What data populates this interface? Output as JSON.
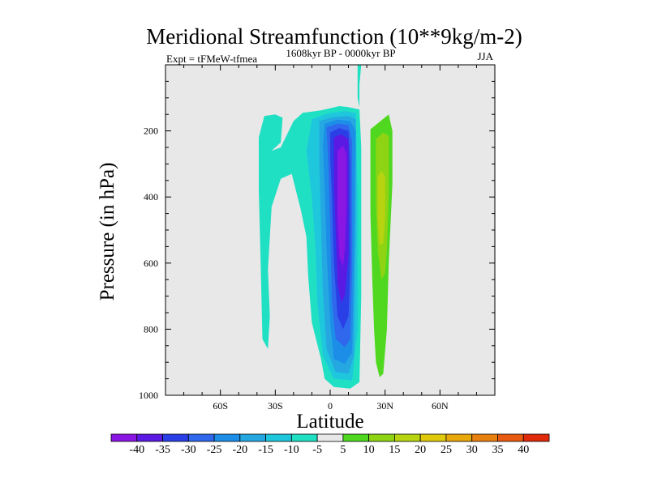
{
  "chart_data": {
    "type": "heatmap",
    "title": "Meridional Streamfunction (10**9kg/m-2)",
    "subtitle_left": "Expt = tFMeW-tfmea",
    "subtitle_center": "1608kyr BP - 0000kyr BP",
    "subtitle_right": "JJA",
    "xlabel": "Latitude",
    "ylabel": "Pressure (in hPa)",
    "xlim": [
      -90,
      90
    ],
    "ylim": [
      0,
      1000
    ],
    "y_inverted": true,
    "x_ticks": [
      {
        "value": -60,
        "label": "60S"
      },
      {
        "value": -30,
        "label": "30S"
      },
      {
        "value": 0,
        "label": "0"
      },
      {
        "value": 30,
        "label": "30N"
      },
      {
        "value": 60,
        "label": "60N"
      }
    ],
    "y_ticks": [
      {
        "value": 200,
        "label": "200"
      },
      {
        "value": 400,
        "label": "400"
      },
      {
        "value": 600,
        "label": "600"
      },
      {
        "value": 800,
        "label": "800"
      },
      {
        "value": 1000,
        "label": "1000"
      }
    ],
    "background_color": "#e8e8e8",
    "contour_levels": [
      -40,
      -35,
      -30,
      -25,
      -20,
      -15,
      -10,
      -5,
      5,
      10,
      15,
      20,
      25,
      30,
      35,
      40
    ],
    "colorbar_labels": [
      "-40",
      "-35",
      "-30",
      "-25",
      "-20",
      "-15",
      "-10",
      "-5",
      "5",
      "10",
      "15",
      "20",
      "25",
      "30",
      "35",
      "40"
    ],
    "colorbar_colors": [
      "#8a16e4",
      "#5a1ae4",
      "#2a3fe6",
      "#2f68ec",
      "#1c8ee8",
      "#25a8e2",
      "#1ec7dc",
      "#20e0c4",
      "#e8e8e8",
      "#50d820",
      "#8ed414",
      "#b8d410",
      "#e0c80c",
      "#e8a80c",
      "#e88010",
      "#e85a10",
      "#e02a0a"
    ],
    "regions": [
      {
        "name": "southern-cell-outer",
        "level": -5,
        "color": "#20e0c4",
        "points": [
          [
            -36,
            155
          ],
          [
            -30,
            150
          ],
          [
            -26,
            160
          ],
          [
            -27,
            235
          ],
          [
            -32,
            260
          ],
          [
            -27,
            250
          ],
          [
            -20,
            170
          ],
          [
            -15,
            145
          ],
          [
            -5,
            138
          ],
          [
            5,
            125
          ],
          [
            10,
            128
          ],
          [
            16,
            135
          ],
          [
            17,
            250
          ],
          [
            17,
            700
          ],
          [
            16,
            960
          ],
          [
            11,
            980
          ],
          [
            2,
            975
          ],
          [
            -3,
            950
          ],
          [
            -5,
            890
          ],
          [
            -10,
            780
          ],
          [
            -12,
            640
          ],
          [
            -13,
            520
          ],
          [
            -16,
            440
          ],
          [
            -21,
            330
          ],
          [
            -27,
            345
          ],
          [
            -32,
            430
          ],
          [
            -34,
            620
          ],
          [
            -33,
            760
          ],
          [
            -34,
            860
          ],
          [
            -37,
            830
          ],
          [
            -38,
            600
          ],
          [
            -39,
            380
          ],
          [
            -39,
            220
          ]
        ]
      },
      {
        "name": "southern-cell-minus10",
        "level": -10,
        "color": "#1ec7dc",
        "points": [
          [
            -10,
            165
          ],
          [
            -2,
            148
          ],
          [
            8,
            140
          ],
          [
            14,
            146
          ],
          [
            15,
            400
          ],
          [
            15,
            800
          ],
          [
            12,
            955
          ],
          [
            2,
            950
          ],
          [
            -4,
            880
          ],
          [
            -7,
            720
          ],
          [
            -8,
            560
          ],
          [
            -10,
            400
          ],
          [
            -13,
            260
          ],
          [
            -11,
            200
          ]
        ]
      },
      {
        "name": "southern-cell-minus15",
        "level": -15,
        "color": "#25a8e2",
        "points": [
          [
            -6,
            170
          ],
          [
            2,
            158
          ],
          [
            10,
            155
          ],
          [
            14,
            165
          ],
          [
            14,
            500
          ],
          [
            13,
            880
          ],
          [
            10,
            935
          ],
          [
            3,
            930
          ],
          [
            -2,
            860
          ],
          [
            -4,
            680
          ],
          [
            -5,
            480
          ],
          [
            -6,
            300
          ]
        ]
      },
      {
        "name": "southern-cell-minus20",
        "level": -20,
        "color": "#1c8ee8",
        "points": [
          [
            -3,
            178
          ],
          [
            4,
            166
          ],
          [
            11,
            170
          ],
          [
            14,
            200
          ],
          [
            13,
            600
          ],
          [
            12,
            870
          ],
          [
            8,
            905
          ],
          [
            2,
            890
          ],
          [
            0,
            780
          ],
          [
            -2,
            560
          ],
          [
            -3,
            380
          ],
          [
            -4,
            240
          ]
        ]
      },
      {
        "name": "southern-cell-minus25",
        "level": -25,
        "color": "#2f68ec",
        "points": [
          [
            -2,
            190
          ],
          [
            4,
            178
          ],
          [
            10,
            182
          ],
          [
            12,
            230
          ],
          [
            12,
            620
          ],
          [
            11,
            830
          ],
          [
            8,
            855
          ],
          [
            3,
            830
          ],
          [
            1,
            720
          ],
          [
            0,
            500
          ],
          [
            -1,
            300
          ]
        ]
      },
      {
        "name": "southern-cell-minus30",
        "level": -30,
        "color": "#2a3fe6",
        "points": [
          [
            0,
            205
          ],
          [
            5,
            192
          ],
          [
            10,
            200
          ],
          [
            11,
            300
          ],
          [
            11,
            600
          ],
          [
            10,
            760
          ],
          [
            7,
            800
          ],
          [
            4,
            760
          ],
          [
            2,
            600
          ],
          [
            1,
            400
          ],
          [
            0,
            280
          ]
        ]
      },
      {
        "name": "southern-cell-minus35",
        "level": -35,
        "color": "#5a1ae4",
        "points": [
          [
            2,
            220
          ],
          [
            6,
            210
          ],
          [
            10,
            225
          ],
          [
            10,
            350
          ],
          [
            10,
            580
          ],
          [
            8,
            700
          ],
          [
            6,
            720
          ],
          [
            4,
            660
          ],
          [
            3,
            500
          ],
          [
            2,
            360
          ]
        ]
      },
      {
        "name": "southern-cell-minus40",
        "level": -40,
        "color": "#8a16e4",
        "points": [
          [
            4,
            260
          ],
          [
            7,
            245
          ],
          [
            9,
            270
          ],
          [
            9,
            420
          ],
          [
            8,
            560
          ],
          [
            7,
            610
          ],
          [
            5,
            580
          ],
          [
            4,
            450
          ]
        ]
      },
      {
        "name": "northern-cell-plus5",
        "level": 5,
        "color": "#50d820",
        "points": [
          [
            22,
            195
          ],
          [
            32,
            150
          ],
          [
            34,
            200
          ],
          [
            34,
            360
          ],
          [
            32,
            600
          ],
          [
            31,
            800
          ],
          [
            29,
            935
          ],
          [
            27,
            945
          ],
          [
            25,
            900
          ],
          [
            24,
            800
          ],
          [
            23,
            650
          ],
          [
            22,
            450
          ]
        ]
      },
      {
        "name": "northern-cell-plus10",
        "level": 10,
        "color": "#8ed414",
        "points": [
          [
            25,
            225
          ],
          [
            29,
            205
          ],
          [
            32,
            215
          ],
          [
            32,
            400
          ],
          [
            31,
            560
          ],
          [
            30,
            630
          ],
          [
            28,
            650
          ],
          [
            26,
            560
          ],
          [
            25,
            420
          ]
        ]
      },
      {
        "name": "northern-cell-plus15",
        "level": 15,
        "color": "#b8d410",
        "points": [
          [
            26,
            340
          ],
          [
            28,
            320
          ],
          [
            30,
            340
          ],
          [
            30,
            460
          ],
          [
            29,
            540
          ],
          [
            27,
            545
          ],
          [
            26,
            470
          ]
        ]
      },
      {
        "name": "equator-spike",
        "level": -5,
        "color": "#20e0c4",
        "points": [
          [
            15,
            0
          ],
          [
            17,
            0
          ],
          [
            16,
            60
          ],
          [
            16,
            130
          ],
          [
            15,
            100
          ]
        ]
      }
    ]
  }
}
